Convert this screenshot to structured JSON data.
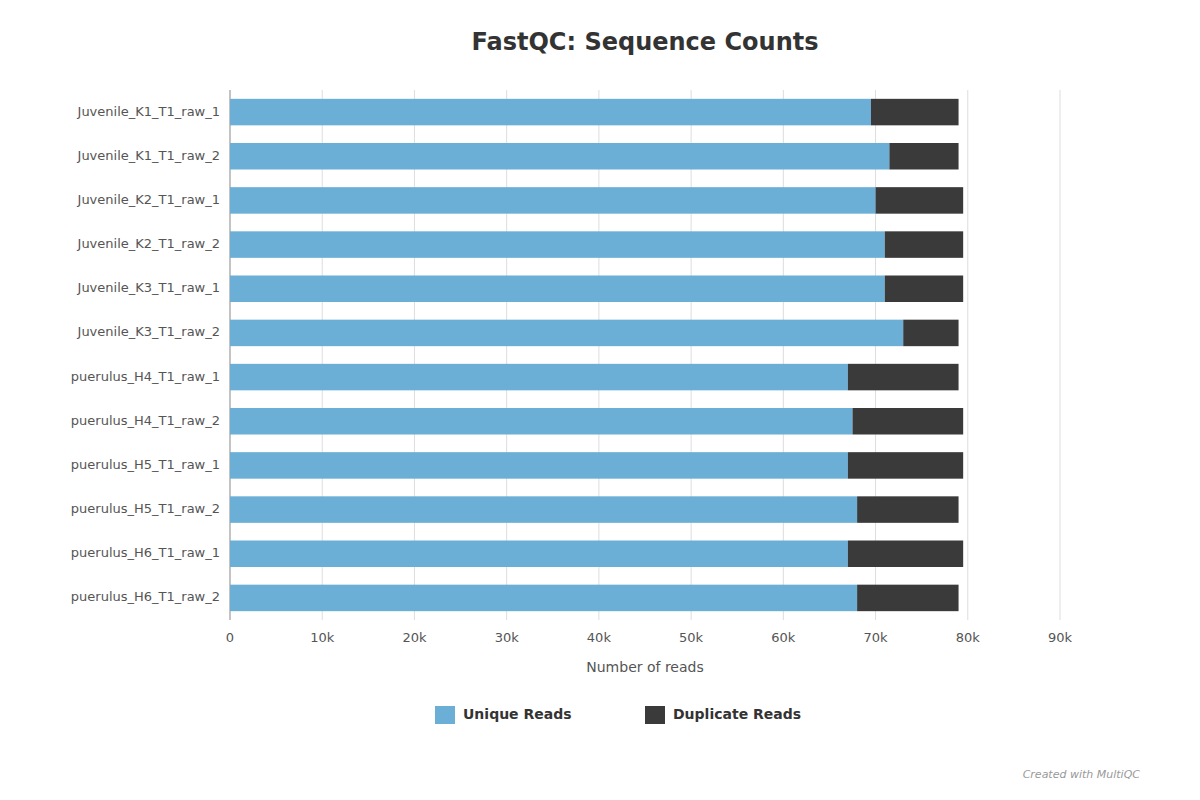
{
  "chart_data": {
    "type": "bar",
    "orientation": "horizontal",
    "stacked": true,
    "title": "FastQC: Sequence Counts",
    "xlabel": "Number of reads",
    "categories": [
      "Juvenile_K1_T1_raw_1",
      "Juvenile_K1_T1_raw_2",
      "Juvenile_K2_T1_raw_1",
      "Juvenile_K2_T1_raw_2",
      "Juvenile_K3_T1_raw_1",
      "Juvenile_K3_T1_raw_2",
      "puerulus_H4_T1_raw_1",
      "puerulus_H4_T1_raw_2",
      "puerulus_H5_T1_raw_1",
      "puerulus_H5_T1_raw_2",
      "puerulus_H6_T1_raw_1",
      "puerulus_H6_T1_raw_2"
    ],
    "series": [
      {
        "name": "Unique Reads",
        "color": "#6baed6",
        "values": [
          69500,
          71500,
          70000,
          71000,
          71000,
          73000,
          67000,
          67500,
          67000,
          68000,
          67000,
          68000
        ]
      },
      {
        "name": "Duplicate Reads",
        "color": "#3a3a3a",
        "values": [
          9500,
          7500,
          9500,
          8500,
          8500,
          6000,
          12000,
          12000,
          12500,
          11000,
          12500,
          11000
        ]
      }
    ],
    "xlim": [
      0,
      90000
    ],
    "xticks": [
      0,
      {
        "value": 10000,
        "label": "10k"
      },
      {
        "value": 20000,
        "label": "20k"
      },
      {
        "value": 30000,
        "label": "30k"
      },
      {
        "value": 40000,
        "label": "40k"
      },
      {
        "value": 50000,
        "label": "50k"
      },
      {
        "value": 60000,
        "label": "60k"
      },
      {
        "value": 70000,
        "label": "70k"
      },
      {
        "value": 80000,
        "label": "80k"
      },
      {
        "value": 90000,
        "label": "90k"
      }
    ],
    "grid": true,
    "legend": "bottom",
    "annotations": [
      "Created with MultiQC"
    ]
  }
}
